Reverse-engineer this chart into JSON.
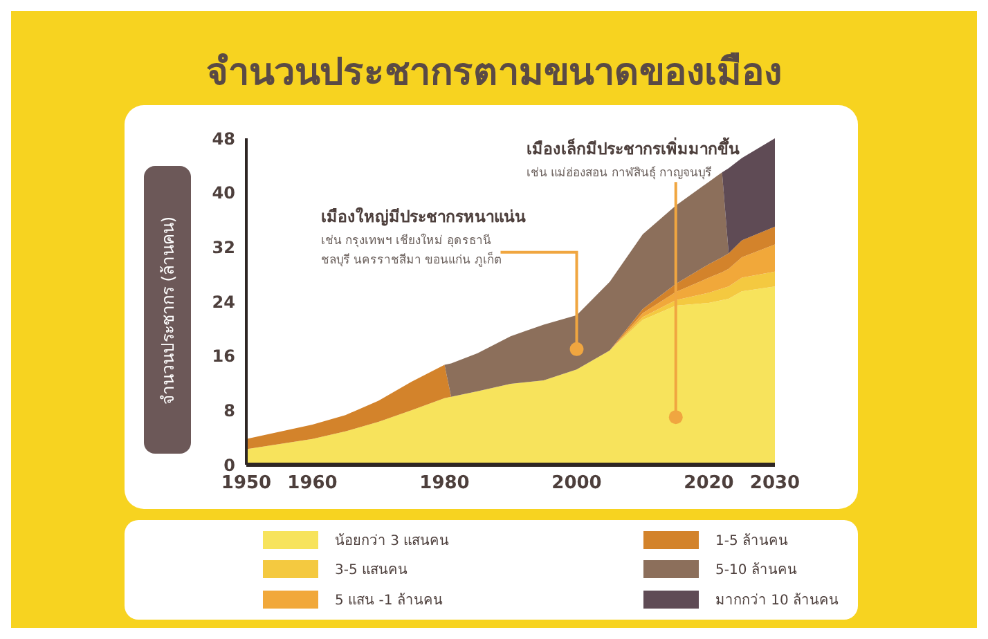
{
  "chart_data": {
    "type": "area",
    "stacked": true,
    "title": "จำนวนประชากรตามขนาดของเมือง",
    "ylabel": "จำนวนประชากร (ล้านคน)",
    "x": [
      1950,
      1960,
      1965,
      1970,
      1975,
      1980,
      1981,
      1985,
      1990,
      1995,
      2000,
      2005,
      2010,
      2015,
      2020,
      2022,
      2023,
      2025,
      2030
    ],
    "series": [
      {
        "name": "น้อยกว่า 3 แสนคน",
        "color": "#f7e35c",
        "values": [
          2.3,
          3.8,
          4.9,
          6.3,
          8,
          9.8,
          10,
          10.8,
          11.9,
          12.4,
          14,
          16.8,
          21.3,
          23.4,
          23.8,
          24.2,
          24.4,
          25.5,
          26.2
        ]
      },
      {
        "name": "3-5 แสนคน",
        "color": "#f4c940",
        "values": [
          0,
          0,
          0,
          0,
          0,
          0,
          0,
          0,
          0,
          0,
          0,
          0,
          0.4,
          0.8,
          1.5,
          1.7,
          1.8,
          2,
          2.2
        ]
      },
      {
        "name": "5 แสน -1 ล้านคน",
        "color": "#f1a83a",
        "values": [
          0,
          0,
          0,
          0,
          0,
          0,
          0,
          0,
          0,
          0,
          0,
          0,
          0.6,
          1.2,
          2.2,
          2.4,
          2.6,
          3,
          4
        ]
      },
      {
        "name": "1-5 ล้านคน",
        "color": "#d3832b",
        "values": [
          1.5,
          2.1,
          2.4,
          3.1,
          4.2,
          4.9,
          0,
          0,
          0,
          0,
          0,
          0,
          0.6,
          1.2,
          2,
          2.2,
          2.3,
          2.5,
          2.6
        ]
      },
      {
        "name": "5-10 ล้านคน",
        "color": "#8c6f5b",
        "values": [
          0,
          0,
          0,
          0,
          0,
          0,
          4.9,
          5.6,
          7,
          8.2,
          8,
          10.1,
          11,
          11.5,
          12.1,
          12.5,
          0,
          0,
          0
        ]
      },
      {
        "name": "มากกว่า 10 ล้านคน",
        "color": "#5f4b55",
        "values": [
          0,
          0,
          0,
          0,
          0,
          0,
          0,
          0,
          0,
          0,
          0,
          0,
          0,
          0,
          0,
          0,
          12.5,
          12.1,
          13
        ]
      }
    ],
    "xlim": [
      1950,
      2030
    ],
    "xticks": [
      1950,
      1960,
      1980,
      2000,
      2020,
      2030
    ],
    "ylim": [
      0,
      48
    ],
    "yticks": [
      0,
      8,
      16,
      24,
      32,
      40,
      48
    ],
    "legend": "bottom",
    "annotations": [
      {
        "text": "เมืองใหญ่มีประชากรหนาแน่น\nเช่น กรุงเทพฯ เชียงใหม่ อุดรธานี\nชลบุรี นครราชสีมา ขอนแก่น ภูเก็ต",
        "x": 2000,
        "y": 17
      },
      {
        "text": "เมืองเล็กมีประชากรเพิ่มมากขึ้น\nเช่น แม่ฮ่องสอน กาฬสินธุ์ กาญจนบุรี",
        "x": 2015,
        "y": 7
      }
    ]
  }
}
